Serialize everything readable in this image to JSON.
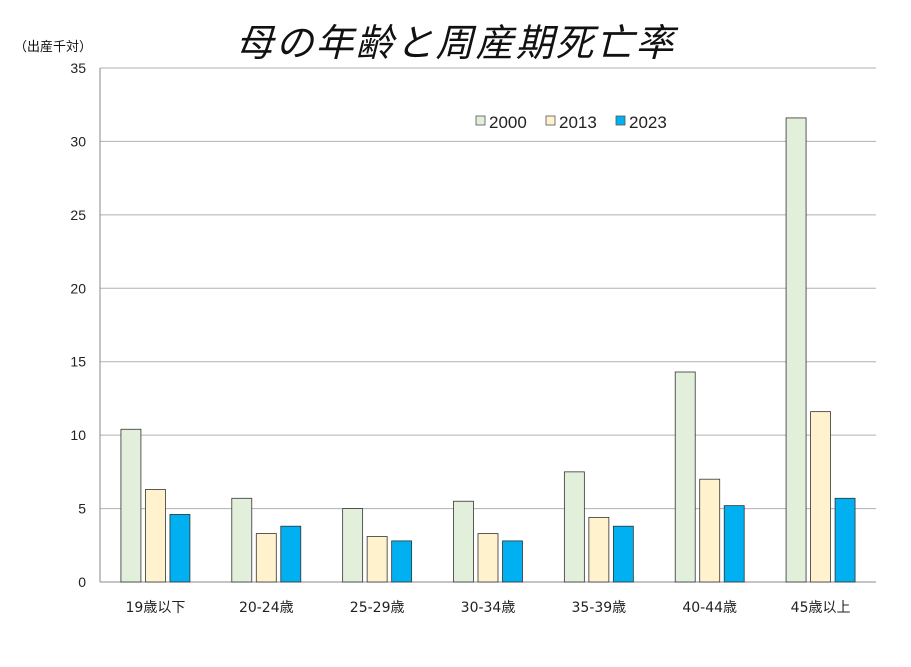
{
  "chart_data": {
    "type": "bar",
    "title": "母の年齢と周産期死亡率",
    "ylabel": "（出産千対）",
    "xlabel": "",
    "ylim": [
      0,
      35
    ],
    "yticks": [
      0,
      5,
      10,
      15,
      20,
      25,
      30,
      35
    ],
    "grid": true,
    "legend_position": "top-right",
    "categories": [
      "19歳以下",
      "20-24歳",
      "25-29歳",
      "30-34歳",
      "35-39歳",
      "40-44歳",
      "45歳以上"
    ],
    "series": [
      {
        "name": "2000",
        "color": "#E2EFDA",
        "values": [
          10.4,
          5.7,
          5.0,
          5.5,
          7.5,
          14.3,
          31.6
        ]
      },
      {
        "name": "2013",
        "color": "#FFF2CC",
        "values": [
          6.3,
          3.3,
          3.1,
          3.3,
          4.4,
          7.0,
          11.6
        ]
      },
      {
        "name": "2023",
        "color": "#00B0F0",
        "values": [
          4.6,
          3.8,
          2.8,
          2.8,
          3.8,
          5.2,
          5.7
        ]
      }
    ]
  }
}
